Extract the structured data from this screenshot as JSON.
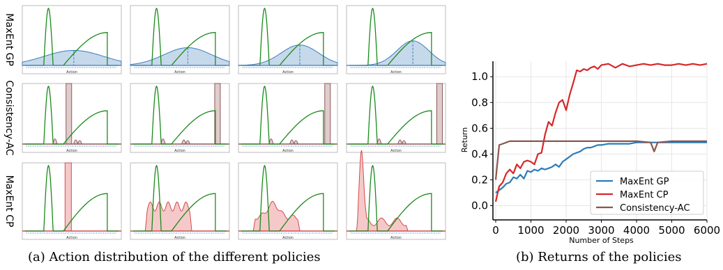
{
  "captions": {
    "left": "(a) Action distribution of the different policies",
    "right": "(b) Returns of the policies"
  },
  "left_panel": {
    "row_labels": [
      "MaxEnt GP",
      "Consistency-AC",
      "MaxEnt CP"
    ],
    "subplot_xlabel": "Action",
    "colors": {
      "green": "#1a8a1a",
      "gp_fill": "#c6d9ea",
      "gp_line": "#3a7bbf",
      "cac_fill": "#e0cccc",
      "cac_line": "#8c5a5a",
      "cp_fill": "#f5c9c9",
      "cp_line": "#d34a4a"
    }
  },
  "chart_data": {
    "type": "line",
    "title": "",
    "xlabel": "Number of Steps",
    "ylabel": "Return",
    "xlim": [
      0,
      6000
    ],
    "ylim": [
      -0.1,
      1.12
    ],
    "xticks": [
      "0",
      "1000",
      "2000",
      "3000",
      "4000",
      "5000",
      "6000"
    ],
    "yticks": [
      "0.0",
      "0.2",
      "0.4",
      "0.6",
      "0.8",
      "1.0"
    ],
    "grid": true,
    "legend_position": "lower-right",
    "series": [
      {
        "name": "MaxEnt GP",
        "color": "#2b7bb9",
        "x": [
          0,
          100,
          200,
          300,
          400,
          500,
          600,
          700,
          800,
          900,
          1000,
          1100,
          1200,
          1300,
          1400,
          1500,
          1600,
          1700,
          1800,
          1900,
          2000,
          2100,
          2200,
          2300,
          2400,
          2500,
          2600,
          2700,
          2800,
          2900,
          3000,
          3200,
          3400,
          3600,
          3800,
          4000,
          4200,
          4400,
          4600,
          4800,
          5000,
          5200,
          5400,
          5600,
          5800,
          6000
        ],
        "y": [
          0.1,
          0.12,
          0.14,
          0.17,
          0.18,
          0.22,
          0.21,
          0.24,
          0.21,
          0.27,
          0.26,
          0.28,
          0.27,
          0.29,
          0.28,
          0.29,
          0.3,
          0.32,
          0.3,
          0.34,
          0.36,
          0.38,
          0.4,
          0.41,
          0.42,
          0.44,
          0.45,
          0.45,
          0.46,
          0.47,
          0.47,
          0.48,
          0.48,
          0.48,
          0.48,
          0.49,
          0.49,
          0.49,
          0.49,
          0.49,
          0.49,
          0.49,
          0.49,
          0.49,
          0.49,
          0.49
        ]
      },
      {
        "name": "MaxEnt CP",
        "color": "#d62728",
        "x": [
          0,
          100,
          200,
          300,
          400,
          500,
          600,
          700,
          800,
          900,
          1000,
          1100,
          1200,
          1300,
          1400,
          1500,
          1600,
          1700,
          1800,
          1900,
          2000,
          2100,
          2200,
          2300,
          2400,
          2500,
          2600,
          2700,
          2800,
          2900,
          3000,
          3200,
          3400,
          3600,
          3800,
          4000,
          4200,
          4400,
          4600,
          4800,
          5000,
          5200,
          5400,
          5600,
          5800,
          6000
        ],
        "y": [
          0.03,
          0.15,
          0.18,
          0.25,
          0.28,
          0.25,
          0.32,
          0.29,
          0.34,
          0.35,
          0.34,
          0.32,
          0.4,
          0.41,
          0.55,
          0.65,
          0.62,
          0.72,
          0.8,
          0.82,
          0.74,
          0.86,
          0.95,
          1.05,
          1.04,
          1.06,
          1.05,
          1.07,
          1.08,
          1.06,
          1.09,
          1.1,
          1.07,
          1.1,
          1.08,
          1.09,
          1.1,
          1.09,
          1.1,
          1.09,
          1.09,
          1.1,
          1.09,
          1.1,
          1.09,
          1.1
        ]
      },
      {
        "name": "Consistency-AC",
        "color": "#8c564b",
        "x": [
          0,
          100,
          200,
          300,
          400,
          500,
          1000,
          2000,
          3000,
          4000,
          4400,
          4500,
          4600,
          5000,
          5500,
          6000
        ],
        "y": [
          0.2,
          0.47,
          0.48,
          0.49,
          0.5,
          0.5,
          0.5,
          0.5,
          0.5,
          0.5,
          0.49,
          0.42,
          0.49,
          0.5,
          0.5,
          0.5
        ]
      }
    ]
  }
}
